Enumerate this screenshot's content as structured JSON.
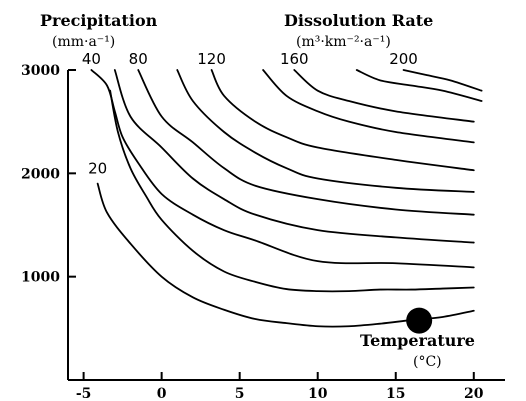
{
  "chart_data": {
    "type": "line",
    "title": "",
    "ylabel": "Precipitation",
    "ylabel_unit": "(mm·a⁻¹)",
    "series_title": "Dissolution Rate",
    "series_unit": "(m³·km⁻²·a⁻¹)",
    "xlabel": "Temperature",
    "xlabel_unit": "(°C)",
    "xlim": [
      -6,
      22
    ],
    "ylim": [
      0,
      3000
    ],
    "x_ticks": [
      -5,
      0,
      5,
      10,
      15,
      20
    ],
    "y_ticks": [
      1000,
      2000,
      3000
    ],
    "grid": false,
    "marker_point": {
      "x": 16.5,
      "y": 575
    },
    "series": [
      {
        "name": "20",
        "points": [
          [
            -4.1,
            1900
          ],
          [
            -3.5,
            1620
          ],
          [
            -2,
            1320
          ],
          [
            0,
            1000
          ],
          [
            2,
            800
          ],
          [
            4,
            680
          ],
          [
            6,
            590
          ],
          [
            8,
            550
          ],
          [
            10,
            520
          ],
          [
            12,
            520
          ],
          [
            14,
            545
          ],
          [
            16,
            580
          ],
          [
            18,
            610
          ],
          [
            20,
            670
          ]
        ]
      },
      {
        "name": "",
        "points": [
          [
            -3.3,
            2800
          ],
          [
            -2.8,
            2400
          ],
          [
            -2,
            2050
          ],
          [
            -1,
            1780
          ],
          [
            0,
            1550
          ],
          [
            2,
            1250
          ],
          [
            4,
            1050
          ],
          [
            6,
            950
          ],
          [
            8,
            880
          ],
          [
            10,
            860
          ],
          [
            12,
            860
          ],
          [
            14,
            875
          ],
          [
            16,
            875
          ],
          [
            18,
            885
          ],
          [
            20,
            895
          ]
        ]
      },
      {
        "name": "40",
        "points": [
          [
            -4.5,
            3000
          ],
          [
            -3.5,
            2850
          ],
          [
            -3,
            2600
          ],
          [
            -2.5,
            2350
          ],
          [
            -1.5,
            2100
          ],
          [
            0,
            1800
          ],
          [
            2,
            1600
          ],
          [
            4,
            1450
          ],
          [
            6,
            1350
          ],
          [
            10,
            1150
          ],
          [
            15,
            1130
          ],
          [
            20,
            1090
          ]
        ]
      },
      {
        "name": "",
        "points": [
          [
            -3,
            3000
          ],
          [
            -2,
            2550
          ],
          [
            0,
            2250
          ],
          [
            2,
            1950
          ],
          [
            4,
            1750
          ],
          [
            6,
            1600
          ],
          [
            10,
            1450
          ],
          [
            15,
            1380
          ],
          [
            20,
            1330
          ]
        ]
      },
      {
        "name": "80",
        "points": [
          [
            -1.5,
            3000
          ],
          [
            0,
            2550
          ],
          [
            2,
            2300
          ],
          [
            4,
            2050
          ],
          [
            6,
            1880
          ],
          [
            10,
            1750
          ],
          [
            15,
            1650
          ],
          [
            20,
            1600
          ]
        ]
      },
      {
        "name": "",
        "points": [
          [
            1,
            3000
          ],
          [
            2,
            2700
          ],
          [
            4,
            2400
          ],
          [
            6,
            2200
          ],
          [
            8,
            2050
          ],
          [
            10,
            1950
          ],
          [
            15,
            1860
          ],
          [
            20,
            1820
          ]
        ]
      },
      {
        "name": "120",
        "points": [
          [
            3.2,
            3000
          ],
          [
            4,
            2750
          ],
          [
            6,
            2500
          ],
          [
            8,
            2350
          ],
          [
            10,
            2250
          ],
          [
            15,
            2130
          ],
          [
            20,
            2030
          ]
        ]
      },
      {
        "name": "",
        "points": [
          [
            6.5,
            3000
          ],
          [
            8,
            2750
          ],
          [
            10,
            2600
          ],
          [
            12,
            2500
          ],
          [
            15,
            2400
          ],
          [
            20,
            2300
          ]
        ]
      },
      {
        "name": "160",
        "points": [
          [
            8.5,
            3000
          ],
          [
            10,
            2800
          ],
          [
            12,
            2700
          ],
          [
            15,
            2600
          ],
          [
            20,
            2500
          ]
        ]
      },
      {
        "name": "",
        "points": [
          [
            12.5,
            3000
          ],
          [
            14,
            2900
          ],
          [
            16,
            2850
          ],
          [
            18,
            2800
          ],
          [
            20.5,
            2700
          ]
        ]
      },
      {
        "name": "200",
        "points": [
          [
            15.5,
            3000
          ],
          [
            17,
            2950
          ],
          [
            18.5,
            2900
          ],
          [
            20.5,
            2800
          ]
        ]
      }
    ]
  }
}
